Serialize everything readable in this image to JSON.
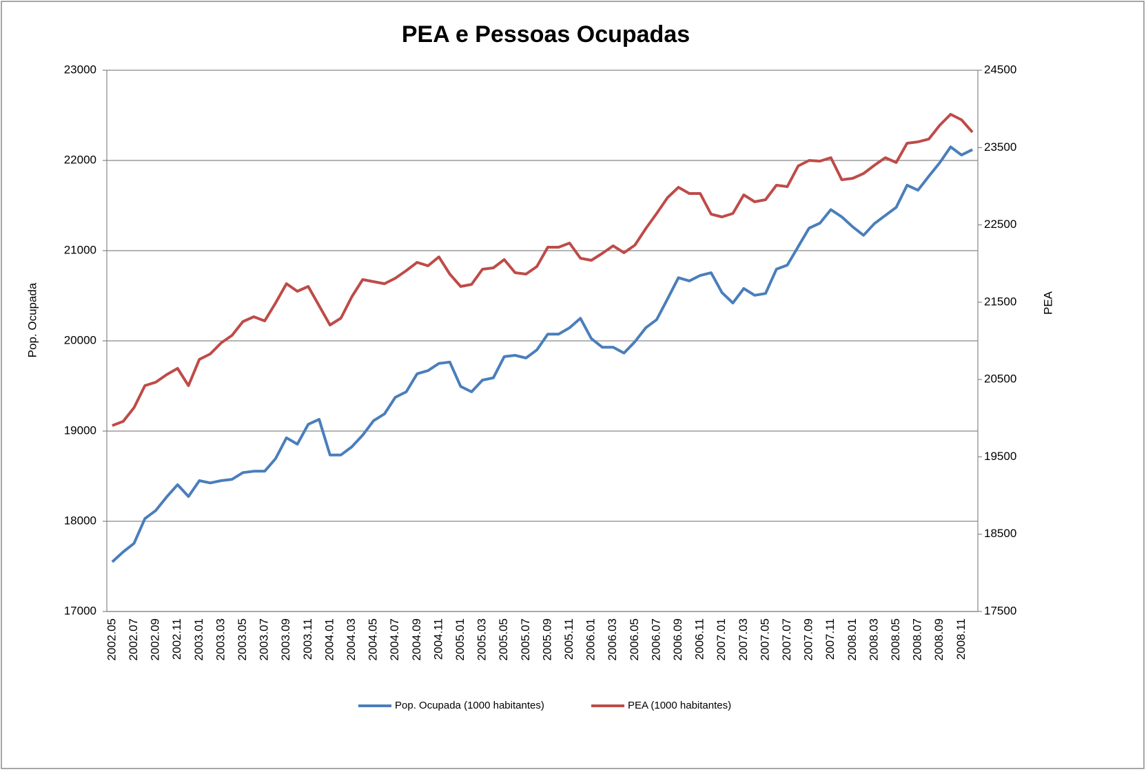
{
  "chart_data": {
    "type": "line",
    "title": "PEA e Pessoas Ocupadas",
    "y_label": "Pop. Ocupada",
    "y2_label": "PEA",
    "categories": [
      "2002.05",
      null,
      "2002.07",
      null,
      "2002.09",
      null,
      "2002.11",
      null,
      "2003.01",
      null,
      "2003.03",
      null,
      "2003.05",
      null,
      "2003.07",
      null,
      "2003.09",
      null,
      "2003.11",
      null,
      "2004.01",
      null,
      "2004.03",
      null,
      "2004.05",
      null,
      "2004.07",
      null,
      "2004.09",
      null,
      "2004.11",
      null,
      "2005.01",
      null,
      "2005.03",
      null,
      "2005.05",
      null,
      "2005.07",
      null,
      "2005.09",
      null,
      "2005.11",
      null,
      "2006.01",
      null,
      "2006.03",
      null,
      "2006.05",
      null,
      "2006.07",
      null,
      "2006.09",
      null,
      "2006.11",
      null,
      "2007.01",
      null,
      "2007.03",
      null,
      "2007.05",
      null,
      "2007.07",
      null,
      "2007.09",
      null,
      "2007.11",
      null,
      "2008.01",
      null,
      "2008.03",
      null,
      "2008.05",
      null,
      "2008.07",
      null,
      "2008.09",
      null,
      "2008.11",
      null
    ],
    "series": [
      {
        "name": "Pop. Ocupada (1000 habitantes)",
        "color": "#4a7ebb",
        "axis": "y",
        "values": [
          17550,
          17660,
          17755,
          18030,
          18120,
          18270,
          18405,
          18275,
          18450,
          18425,
          18450,
          18465,
          18540,
          18555,
          18555,
          18695,
          18925,
          18855,
          19075,
          19130,
          18735,
          18735,
          18825,
          18955,
          19115,
          19190,
          19375,
          19435,
          19635,
          19670,
          19750,
          19765,
          19495,
          19435,
          19565,
          19590,
          19825,
          19840,
          19810,
          19900,
          20075,
          20075,
          20145,
          20250,
          20025,
          19930,
          19930,
          19865,
          19990,
          20145,
          20235,
          20465,
          20700,
          20665,
          20725,
          20755,
          20535,
          20420,
          20580,
          20505,
          20525,
          20795,
          20840,
          21045,
          21250,
          21305,
          21455,
          21375,
          21265,
          21170,
          21300,
          21390,
          21480,
          21725,
          21670,
          21825,
          21975,
          22150,
          22060,
          22120
        ]
      },
      {
        "name": "PEA (1000 habitantes)",
        "color": "#be4b48",
        "axis": "y2",
        "values": [
          19905,
          19958,
          20136,
          20421,
          20466,
          20564,
          20644,
          20421,
          20760,
          20831,
          20973,
          21071,
          21249,
          21312,
          21258,
          21490,
          21739,
          21641,
          21704,
          21454,
          21205,
          21294,
          21570,
          21793,
          21766,
          21739,
          21810,
          21908,
          22015,
          21971,
          22086,
          21864,
          21704,
          21730,
          21926,
          21944,
          22051,
          21882,
          21864,
          21962,
          22211,
          22211,
          22265,
          22069,
          22042,
          22131,
          22229,
          22140,
          22238,
          22452,
          22648,
          22852,
          22986,
          22906,
          22906,
          22639,
          22603,
          22648,
          22888,
          22799,
          22826,
          23013,
          22995,
          23262,
          23333,
          23324,
          23369,
          23084,
          23102,
          23164,
          23271,
          23369,
          23307,
          23556,
          23574,
          23610,
          23788,
          23930,
          23859,
          23699
        ]
      }
    ],
    "ylim": [
      17000,
      23000
    ],
    "yticks": [
      17000,
      18000,
      19000,
      20000,
      21000,
      22000,
      23000
    ],
    "y2lim": [
      17500,
      24500
    ],
    "y2ticks": [
      17500,
      18500,
      19500,
      20500,
      21500,
      22500,
      23500,
      24500
    ],
    "grid": true,
    "legend": "bottom"
  }
}
